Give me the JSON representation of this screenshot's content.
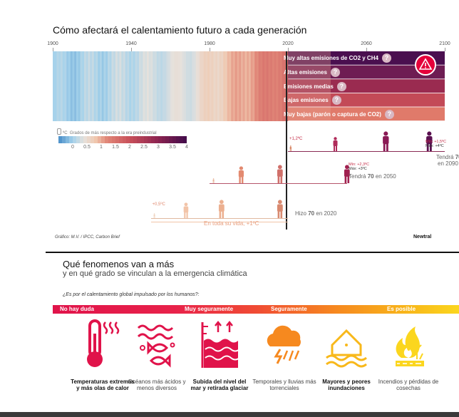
{
  "chart_data": {
    "type": "warming-stripes",
    "title": "Cómo afectará el calentamiento futuro a cada generación",
    "x_ticks": [
      "1900",
      "1940",
      "1980",
      "2020",
      "2060",
      "2100"
    ],
    "xlim": [
      1900,
      2100
    ],
    "scenarios": [
      {
        "name": "Muy altas emisiones de CO2 y CH4",
        "color": "#4a0f4f"
      },
      {
        "name": "Altas emisiones",
        "color": "#6e1d53"
      },
      {
        "name": "Emisiones medias",
        "color": "#9a2b50"
      },
      {
        "name": "Bajas emisiones",
        "color": "#c34a57"
      },
      {
        "name": "Muy bajas (parón o captura de CO2)",
        "color": "#e07a6a"
      }
    ],
    "legend": {
      "title": "Grados de más respecto a la era preindustrial",
      "unit": "ºC",
      "ticks": [
        "0",
        "0.5",
        "1",
        "1.5",
        "2",
        "2.5",
        "3",
        "3.5",
        "4"
      ],
      "range": [
        -0.5,
        4
      ]
    },
    "generations": [
      {
        "born": 2020,
        "temp_label": "+1,2ºC",
        "min_label": "Mín: +1,5ºC",
        "max_label": "Máx: +4ºC",
        "note_prefix": "Tendrá",
        "age": "70",
        "note_suffix": "en 2090"
      },
      {
        "born": 1980,
        "min_label": "Mín: +2,3ºC",
        "max_label": "Máx: +3ºC",
        "note_prefix": "Tendrá",
        "age": "70",
        "note_suffix": "en 2050"
      },
      {
        "born": 1950,
        "temp_label": "+0,5ºC",
        "note_prefix": "Hizo",
        "age": "70",
        "note_suffix": "en 2020",
        "lifetime_label": "En toda su vida, +1ºC"
      }
    ]
  },
  "credit": "Gráfico: M.V. / IPCC, Carbon Brief",
  "brand": "Newtral",
  "section": {
    "title": "Qué fenomenos van a más",
    "subtitle": "y en qué grado se vinculan a la emergencia climática",
    "question": "¿Es por el calentamiento global impulsado por los humanos?:",
    "categories": [
      "No hay duda",
      "Muy seguramente",
      "Seguramente",
      "Es posible"
    ],
    "phenomena": [
      {
        "label": "Temperaturas extremas y más olas de calor",
        "icon": "thermometer-icon",
        "color": "#e0134a",
        "bold": true
      },
      {
        "label": "Océanos más ácidos y menos diversos",
        "icon": "fish-waves-icon",
        "color": "#e0134a",
        "bold": false
      },
      {
        "label": "Subida del nivel del mar y retirada glaciar",
        "icon": "sea-level-icon",
        "color": "#e0134a",
        "bold": true
      },
      {
        "label": "Temporales y lluvias más torrenciales",
        "icon": "storm-cloud-icon",
        "color": "#f6891f",
        "bold": false
      },
      {
        "label": "Mayores y peores inundaciones",
        "icon": "flood-house-icon",
        "color": "#f8b81a",
        "bold": true
      },
      {
        "label": "Incendios y pérdidas de cosechas",
        "icon": "fire-icon",
        "color": "#fbd61e",
        "bold": false
      }
    ]
  }
}
